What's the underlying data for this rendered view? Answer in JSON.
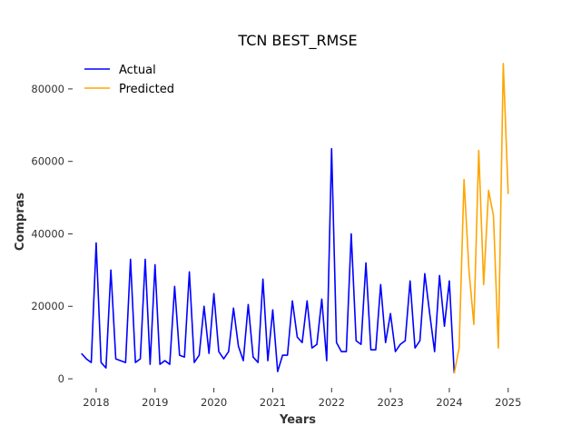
{
  "chart_data": {
    "type": "line",
    "title": "TCN BEST_RMSE",
    "xlabel": "Years",
    "ylabel": "Compras",
    "xlim": [
      2017.6,
      2025.25
    ],
    "ylim": [
      -2500,
      90000
    ],
    "x_ticks": [
      2018,
      2019,
      2020,
      2021,
      2022,
      2023,
      2024,
      2025
    ],
    "x_tick_labels": [
      "2018",
      "2019",
      "2020",
      "2021",
      "2022",
      "2023",
      "2024",
      "2025"
    ],
    "y_ticks": [
      0,
      20000,
      40000,
      60000,
      80000
    ],
    "y_tick_labels": [
      "0",
      "20000",
      "40000",
      "60000",
      "80000"
    ],
    "grid": false,
    "legend_position": "top-left",
    "series": [
      {
        "name": "Actual",
        "color": "#0000ff",
        "x": [
          "2017-10",
          "2017-11",
          "2017-12",
          "2018-01",
          "2018-02",
          "2018-03",
          "2018-04",
          "2018-05",
          "2018-06",
          "2018-07",
          "2018-08",
          "2018-09",
          "2018-10",
          "2018-11",
          "2018-12",
          "2019-01",
          "2019-02",
          "2019-03",
          "2019-04",
          "2019-05",
          "2019-06",
          "2019-07",
          "2019-08",
          "2019-09",
          "2019-10",
          "2019-11",
          "2019-12",
          "2020-01",
          "2020-02",
          "2020-03",
          "2020-04",
          "2020-05",
          "2020-06",
          "2020-07",
          "2020-08",
          "2020-09",
          "2020-10",
          "2020-11",
          "2020-12",
          "2021-01",
          "2021-02",
          "2021-03",
          "2021-04",
          "2021-05",
          "2021-06",
          "2021-07",
          "2021-08",
          "2021-09",
          "2021-10",
          "2021-11",
          "2021-12",
          "2022-01",
          "2022-02",
          "2022-03",
          "2022-04",
          "2022-05",
          "2022-06",
          "2022-07",
          "2022-08",
          "2022-09",
          "2022-10",
          "2022-11",
          "2022-12",
          "2023-01",
          "2023-02",
          "2023-03",
          "2023-04",
          "2023-05",
          "2023-06",
          "2023-07",
          "2023-08",
          "2023-09",
          "2023-10",
          "2023-11",
          "2023-12",
          "2024-01",
          "2024-02"
        ],
        "values": [
          7000,
          5500,
          4500,
          37500,
          4500,
          3000,
          30000,
          5500,
          5000,
          4500,
          33000,
          4500,
          5500,
          33000,
          4000,
          31500,
          4000,
          5000,
          4000,
          25500,
          6500,
          6000,
          29500,
          4500,
          6500,
          20000,
          7000,
          23500,
          7500,
          5500,
          7500,
          19500,
          9000,
          5000,
          20500,
          6000,
          4500,
          27500,
          5000,
          19000,
          2000,
          6500,
          6500,
          21500,
          11500,
          10000,
          21500,
          8500,
          9500,
          22000,
          5000,
          63500,
          10000,
          7500,
          7500,
          40000,
          10500,
          9500,
          32000,
          8000,
          8000,
          26000,
          10000,
          18000,
          7500,
          9500,
          10500,
          27000,
          8500,
          10500,
          29000,
          18000,
          7500,
          28500,
          14500,
          27000,
          1500
        ]
      },
      {
        "name": "Predicted",
        "color": "#ffa500",
        "x": [
          "2024-02",
          "2024-03",
          "2024-04",
          "2024-05",
          "2024-06",
          "2024-07",
          "2024-08",
          "2024-09",
          "2024-10",
          "2024-11",
          "2024-12",
          "2025-01"
        ],
        "values": [
          1500,
          8500,
          55000,
          30000,
          15000,
          63000,
          26000,
          52000,
          45000,
          8500,
          87000,
          51000
        ]
      }
    ]
  }
}
